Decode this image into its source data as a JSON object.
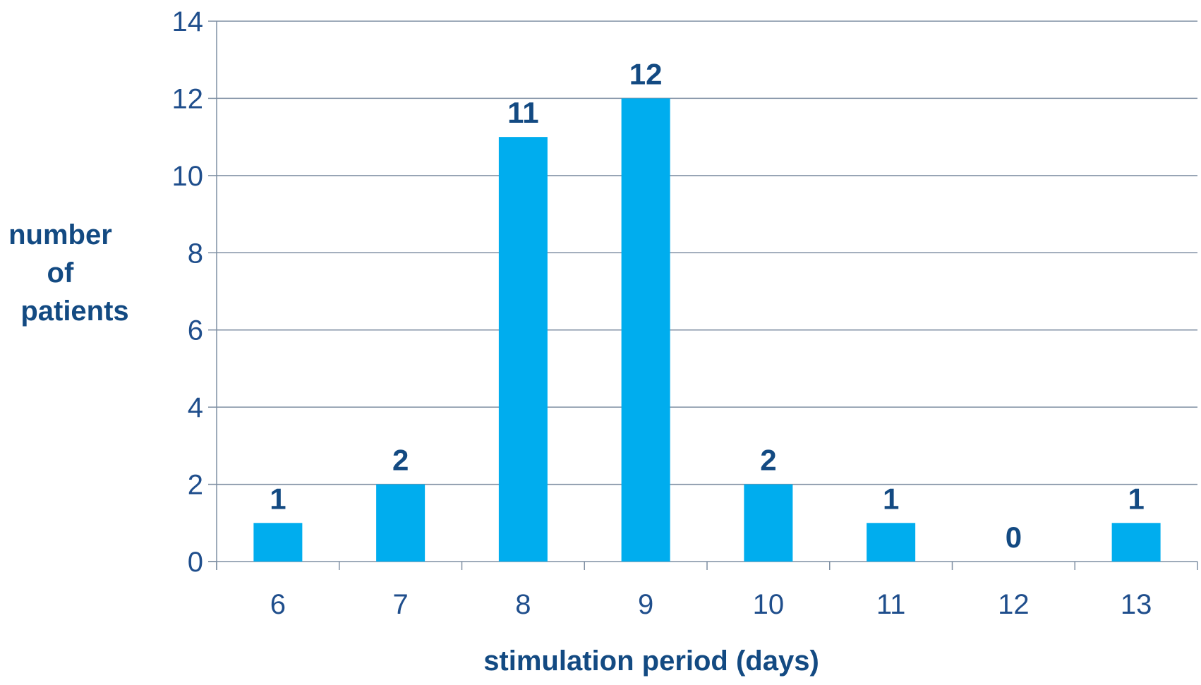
{
  "chart_data": {
    "type": "bar",
    "title": "",
    "xlabel": "stimulation period (days)",
    "ylabel_lines": [
      "number",
      "of",
      "patients"
    ],
    "categories": [
      "6",
      "7",
      "8",
      "9",
      "10",
      "11",
      "12",
      "13"
    ],
    "values": [
      1,
      2,
      11,
      12,
      2,
      1,
      0,
      1
    ],
    "data_labels": [
      "1",
      "2",
      "11",
      "12",
      "2",
      "1",
      "0",
      "1"
    ],
    "ylim": [
      0,
      14
    ],
    "yticks": [
      0,
      2,
      4,
      6,
      8,
      10,
      12,
      14
    ],
    "ytick_labels": [
      "0",
      "2",
      "4",
      "6",
      "8",
      "10",
      "12",
      "14"
    ],
    "grid": true,
    "legend": "none",
    "colors": {
      "bar": "#00adee",
      "gridline": "#7f8fa3",
      "axis": "#7f8fa3",
      "tick_text": "#1f4e8c",
      "label_text": "#134a82"
    }
  }
}
